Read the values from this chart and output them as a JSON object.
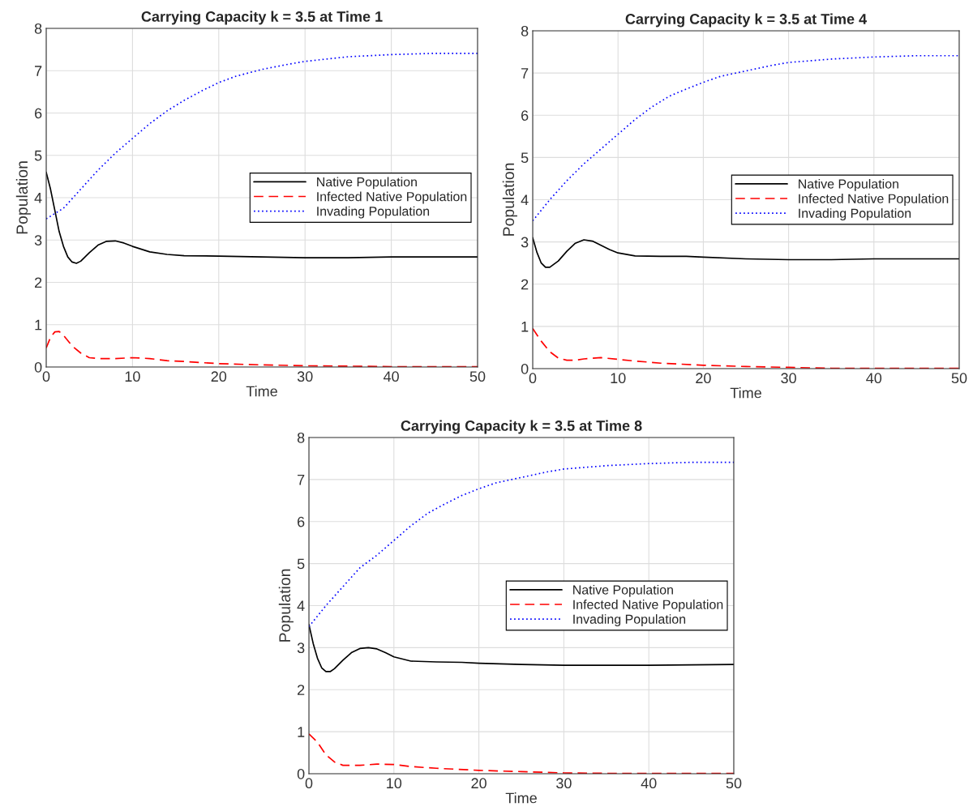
{
  "chart_data": [
    {
      "type": "line",
      "title": "Carrying Capacity k = 3.5 at Time 1",
      "xlabel": "Time",
      "ylabel": "Population",
      "xlim": [
        0,
        50
      ],
      "xticks": [
        0,
        10,
        20,
        30,
        40,
        50
      ],
      "ylim": [
        0,
        8
      ],
      "yticks": [
        0,
        1,
        2,
        3,
        4,
        5,
        6,
        7,
        8
      ],
      "grid": true,
      "legend": "right",
      "series": [
        {
          "name": "Native Population",
          "color": "#000000",
          "line_style": "solid",
          "x": [
            0,
            0.5,
            1,
            1.5,
            2,
            2.5,
            3,
            3.5,
            4,
            5,
            6,
            7,
            8,
            9,
            10,
            12,
            14,
            16,
            20,
            25,
            30,
            35,
            40,
            45,
            50
          ],
          "values": [
            4.6,
            4.2,
            3.7,
            3.2,
            2.85,
            2.6,
            2.48,
            2.45,
            2.5,
            2.7,
            2.88,
            2.97,
            2.98,
            2.93,
            2.85,
            2.72,
            2.66,
            2.63,
            2.62,
            2.6,
            2.58,
            2.58,
            2.6,
            2.6,
            2.6
          ]
        },
        {
          "name": "Infected Native Population",
          "color": "#ff0000",
          "line_style": "dashed",
          "x": [
            0,
            0.5,
            1,
            1.5,
            2,
            3,
            4,
            5,
            6,
            8,
            10,
            12,
            14,
            16,
            20,
            25,
            30,
            35,
            40,
            50
          ],
          "values": [
            0.45,
            0.7,
            0.83,
            0.84,
            0.75,
            0.5,
            0.33,
            0.22,
            0.2,
            0.2,
            0.22,
            0.2,
            0.15,
            0.13,
            0.08,
            0.05,
            0.03,
            0.02,
            0.01,
            0.01
          ]
        },
        {
          "name": "Invading Population",
          "color": "#0000ff",
          "line_style": "dotted",
          "x": [
            0,
            2,
            4,
            6,
            8,
            10,
            12,
            14,
            16,
            18,
            20,
            22,
            25,
            28,
            30,
            35,
            40,
            45,
            50
          ],
          "values": [
            3.5,
            3.75,
            4.2,
            4.65,
            5.05,
            5.4,
            5.75,
            6.05,
            6.3,
            6.52,
            6.72,
            6.87,
            7.03,
            7.15,
            7.22,
            7.33,
            7.38,
            7.41,
            7.41
          ]
        }
      ]
    },
    {
      "type": "line",
      "title": "Carrying Capacity k = 3.5 at Time 4",
      "xlabel": "Time",
      "ylabel": "Population",
      "xlim": [
        0,
        50
      ],
      "xticks": [
        0,
        10,
        20,
        30,
        40,
        50
      ],
      "ylim": [
        0,
        8
      ],
      "yticks": [
        0,
        1,
        2,
        3,
        4,
        5,
        6,
        7,
        8
      ],
      "grid": true,
      "legend": "right",
      "series": [
        {
          "name": "Native Population",
          "color": "#000000",
          "line_style": "solid",
          "x": [
            0,
            0.5,
            1,
            1.5,
            2,
            3,
            4,
            5,
            6,
            7,
            8,
            9,
            10,
            12,
            15,
            18,
            20,
            25,
            30,
            35,
            40,
            50
          ],
          "values": [
            3.1,
            2.75,
            2.5,
            2.4,
            2.4,
            2.55,
            2.78,
            2.97,
            3.05,
            3.02,
            2.92,
            2.82,
            2.74,
            2.67,
            2.66,
            2.66,
            2.64,
            2.6,
            2.58,
            2.58,
            2.6,
            2.6
          ]
        },
        {
          "name": "Infected Native Population",
          "color": "#ff0000",
          "line_style": "dashed",
          "x": [
            0,
            1,
            2,
            3,
            4,
            5,
            6,
            8,
            10,
            12,
            15,
            20,
            25,
            30,
            35,
            50
          ],
          "values": [
            0.95,
            0.65,
            0.4,
            0.25,
            0.2,
            0.2,
            0.23,
            0.26,
            0.22,
            0.18,
            0.13,
            0.08,
            0.05,
            0.03,
            0.01,
            0.01
          ]
        },
        {
          "name": "Invading Population",
          "color": "#0000ff",
          "line_style": "dotted",
          "x": [
            0,
            2,
            4,
            6,
            8,
            10,
            12,
            14,
            16,
            18,
            20,
            22,
            25,
            28,
            30,
            35,
            40,
            45,
            50
          ],
          "values": [
            3.5,
            4.0,
            4.45,
            4.85,
            5.2,
            5.55,
            5.9,
            6.2,
            6.45,
            6.62,
            6.78,
            6.92,
            7.05,
            7.18,
            7.25,
            7.33,
            7.38,
            7.41,
            7.41
          ]
        }
      ]
    },
    {
      "type": "line",
      "title": "Carrying Capacity k = 3.5 at Time 8",
      "xlabel": "Time",
      "ylabel": "Population",
      "xlim": [
        0,
        50
      ],
      "xticks": [
        0,
        10,
        20,
        30,
        40,
        50
      ],
      "ylim": [
        0,
        8
      ],
      "yticks": [
        0,
        1,
        2,
        3,
        4,
        5,
        6,
        7,
        8
      ],
      "grid": true,
      "legend": "right",
      "series": [
        {
          "name": "Native Population",
          "color": "#000000",
          "line_style": "solid",
          "x": [
            0,
            0.5,
            1,
            1.5,
            2,
            2.5,
            3,
            4,
            5,
            6,
            7,
            8,
            9,
            10,
            12,
            15,
            18,
            20,
            25,
            30,
            40,
            50
          ],
          "values": [
            3.55,
            3.1,
            2.75,
            2.52,
            2.43,
            2.43,
            2.5,
            2.7,
            2.88,
            2.98,
            3.0,
            2.97,
            2.88,
            2.78,
            2.68,
            2.66,
            2.65,
            2.63,
            2.6,
            2.58,
            2.58,
            2.6
          ]
        },
        {
          "name": "Infected Native Population",
          "color": "#ff0000",
          "line_style": "dashed",
          "x": [
            0,
            1,
            2,
            3,
            4,
            6,
            8,
            10,
            12,
            15,
            20,
            25,
            30,
            35,
            50
          ],
          "values": [
            0.95,
            0.75,
            0.45,
            0.28,
            0.2,
            0.2,
            0.23,
            0.22,
            0.17,
            0.13,
            0.08,
            0.05,
            0.02,
            0.01,
            0.01
          ]
        },
        {
          "name": "Invading Population",
          "color": "#0000ff",
          "line_style": "dotted",
          "x": [
            0,
            2,
            4,
            6,
            8,
            10,
            12,
            14,
            16,
            18,
            20,
            22,
            25,
            28,
            30,
            35,
            40,
            45,
            50
          ],
          "values": [
            3.5,
            4.0,
            4.45,
            4.9,
            5.2,
            5.55,
            5.9,
            6.2,
            6.42,
            6.62,
            6.78,
            6.92,
            7.05,
            7.18,
            7.25,
            7.33,
            7.38,
            7.41,
            7.41
          ]
        }
      ]
    }
  ]
}
